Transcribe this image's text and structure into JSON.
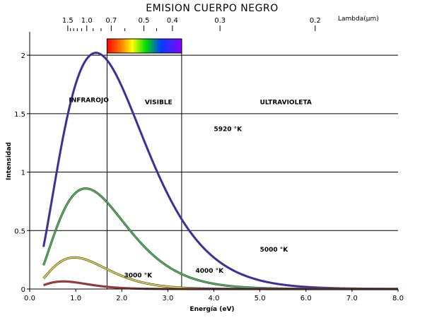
{
  "chart_data": {
    "type": "line",
    "title": "EMISION CUERPO NEGRO",
    "xlabel": "Energía (eV)",
    "ylabel": "Intensidad",
    "x2label": "Lambda(µm)",
    "xlim": [
      0,
      8
    ],
    "ylim": [
      0,
      2.2
    ],
    "x_ticks": [
      "0.0",
      "1.0",
      "2.0",
      "3.0",
      "4.0",
      "5.0",
      "6.0",
      "7.0",
      "8.0"
    ],
    "y_ticks": [
      "0",
      "0.5",
      "1",
      "1.5",
      "2"
    ],
    "x2_ticks": [
      {
        "label": "1.5",
        "energy": 0.827
      },
      {
        "label": "1.0",
        "energy": 1.24
      },
      {
        "label": "0.7",
        "energy": 1.771
      },
      {
        "label": "0.5",
        "energy": 2.48
      },
      {
        "label": "0.4",
        "energy": 3.1
      },
      {
        "label": "0.3",
        "energy": 4.133
      },
      {
        "label": "0.2",
        "energy": 6.2
      }
    ],
    "x2_minor_ticks": [
      0.886,
      0.954,
      1.033,
      1.127,
      1.378,
      1.55,
      2.067,
      2.756
    ],
    "regions": [
      {
        "label": "INFRAROJO",
        "x": 0.85,
        "y": 1.6
      },
      {
        "label": "VISIBLE",
        "x": 2.5,
        "y": 1.58
      },
      {
        "label": "ULTRAVIOLETA",
        "x": 5.0,
        "y": 1.58
      }
    ],
    "visible_band": [
      1.68,
      3.3
    ],
    "series": [
      {
        "name": "5920 °K",
        "temperature": 5920,
        "peak_y": 2.02,
        "color": "#3a1fd0",
        "label_x": 4.0,
        "label_y": 1.35
      },
      {
        "name": "5000 °K",
        "temperature": 5000,
        "peak_y": 0.86,
        "color": "#3cc04a",
        "label_x": 5.0,
        "label_y": 0.32
      },
      {
        "name": "4000 °K",
        "temperature": 4000,
        "peak_y": 0.27,
        "color": "#e8dc30",
        "label_x": 3.6,
        "label_y": 0.14
      },
      {
        "name": "3000 °K",
        "temperature": 3000,
        "peak_y": 0.065,
        "color": "#c82828",
        "label_x": 2.05,
        "label_y": 0.1
      }
    ],
    "grid": true
  }
}
